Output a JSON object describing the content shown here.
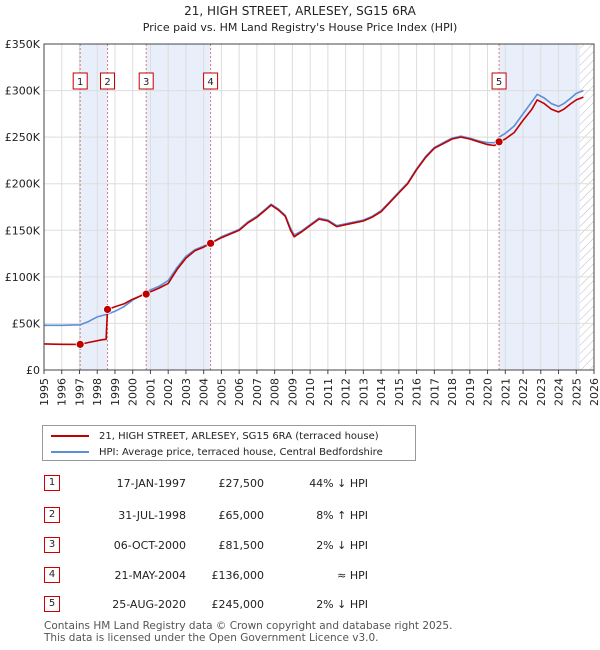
{
  "chart_data": {
    "type": "line",
    "title": "21, HIGH STREET, ARLESEY, SG15 6RA",
    "subtitle": "Price paid vs. HM Land Registry's House Price Index (HPI)",
    "xlim": [
      1995,
      2026
    ],
    "ylim": [
      0,
      350000
    ],
    "ytick_values": [
      0,
      50000,
      100000,
      150000,
      200000,
      250000,
      300000,
      350000
    ],
    "ytick_labels": [
      "£0",
      "£50K",
      "£100K",
      "£150K",
      "£200K",
      "£250K",
      "£300K",
      "£350K"
    ],
    "xtick_labels": [
      "1995",
      "1996",
      "1997",
      "1998",
      "1999",
      "2000",
      "2001",
      "2002",
      "2003",
      "2004",
      "2005",
      "2006",
      "2007",
      "2008",
      "2009",
      "2010",
      "2011",
      "2012",
      "2013",
      "2014",
      "2015",
      "2016",
      "2017",
      "2018",
      "2019",
      "2020",
      "2021",
      "2022",
      "2023",
      "2024",
      "2025",
      "2026"
    ],
    "shaded_periods": [
      [
        1997.04,
        1998.58
      ],
      [
        2000.76,
        2004.39
      ],
      [
        2020.65,
        2025.2
      ]
    ],
    "future_hatch_from": 2025.2,
    "series": [
      {
        "name": "21, HIGH STREET, ARLESEY, SG15 6RA (terraced house)",
        "color": "#c00000",
        "points": [
          [
            1995.0,
            28000
          ],
          [
            1996.0,
            27600
          ],
          [
            1997.04,
            27500
          ],
          [
            1997.5,
            29500
          ],
          [
            1998.3,
            32500
          ],
          [
            1998.5,
            33000
          ],
          [
            1998.58,
            65000
          ],
          [
            1999.0,
            68000
          ],
          [
            1999.5,
            71000
          ],
          [
            2000.0,
            76000
          ],
          [
            2000.5,
            80000
          ],
          [
            2000.76,
            81500
          ],
          [
            2001.0,
            84000
          ],
          [
            2001.5,
            88000
          ],
          [
            2002.0,
            93000
          ],
          [
            2002.5,
            108000
          ],
          [
            2003.0,
            120000
          ],
          [
            2003.5,
            128000
          ],
          [
            2004.0,
            132000
          ],
          [
            2004.39,
            136000
          ],
          [
            2005.0,
            142000
          ],
          [
            2005.5,
            146000
          ],
          [
            2006.0,
            150000
          ],
          [
            2006.5,
            158000
          ],
          [
            2007.0,
            164000
          ],
          [
            2007.5,
            172000
          ],
          [
            2007.8,
            177000
          ],
          [
            2008.2,
            172000
          ],
          [
            2008.6,
            165000
          ],
          [
            2008.9,
            150000
          ],
          [
            2009.1,
            143000
          ],
          [
            2009.5,
            148000
          ],
          [
            2010.0,
            155000
          ],
          [
            2010.5,
            162000
          ],
          [
            2011.0,
            160000
          ],
          [
            2011.5,
            154000
          ],
          [
            2012.0,
            156000
          ],
          [
            2012.5,
            158000
          ],
          [
            2013.0,
            160000
          ],
          [
            2013.5,
            164000
          ],
          [
            2014.0,
            170000
          ],
          [
            2014.5,
            180000
          ],
          [
            2015.0,
            190000
          ],
          [
            2015.5,
            200000
          ],
          [
            2016.0,
            215000
          ],
          [
            2016.5,
            228000
          ],
          [
            2017.0,
            238000
          ],
          [
            2017.5,
            243000
          ],
          [
            2018.0,
            248000
          ],
          [
            2018.5,
            250000
          ],
          [
            2019.0,
            248000
          ],
          [
            2019.5,
            245000
          ],
          [
            2020.0,
            242000
          ],
          [
            2020.4,
            241000
          ],
          [
            2020.65,
            245000
          ],
          [
            2021.0,
            248000
          ],
          [
            2021.5,
            255000
          ],
          [
            2022.0,
            268000
          ],
          [
            2022.5,
            280000
          ],
          [
            2022.8,
            290000
          ],
          [
            2023.2,
            286000
          ],
          [
            2023.6,
            280000
          ],
          [
            2024.0,
            277000
          ],
          [
            2024.3,
            280000
          ],
          [
            2024.7,
            286000
          ],
          [
            2025.0,
            290000
          ],
          [
            2025.4,
            293000
          ]
        ]
      },
      {
        "name": "HPI: Average price, terraced house, Central Bedfordshire",
        "color": "#5b8fd6",
        "points": [
          [
            1995.0,
            48000
          ],
          [
            1996.0,
            48000
          ],
          [
            1997.04,
            48500
          ],
          [
            1997.5,
            52000
          ],
          [
            1998.0,
            57000
          ],
          [
            1998.58,
            60000
          ],
          [
            1999.0,
            63000
          ],
          [
            1999.5,
            68000
          ],
          [
            2000.0,
            75000
          ],
          [
            2000.76,
            83000
          ],
          [
            2001.0,
            86000
          ],
          [
            2001.5,
            90000
          ],
          [
            2002.0,
            96000
          ],
          [
            2002.5,
            110000
          ],
          [
            2003.0,
            122000
          ],
          [
            2003.5,
            129000
          ],
          [
            2004.0,
            133000
          ],
          [
            2004.39,
            136000
          ],
          [
            2005.0,
            143000
          ],
          [
            2005.5,
            147000
          ],
          [
            2006.0,
            151000
          ],
          [
            2006.5,
            159000
          ],
          [
            2007.0,
            165000
          ],
          [
            2007.5,
            173000
          ],
          [
            2007.8,
            178000
          ],
          [
            2008.2,
            173000
          ],
          [
            2008.6,
            166000
          ],
          [
            2008.9,
            152000
          ],
          [
            2009.1,
            145000
          ],
          [
            2009.5,
            149000
          ],
          [
            2010.0,
            156000
          ],
          [
            2010.5,
            163000
          ],
          [
            2011.0,
            161000
          ],
          [
            2011.5,
            155000
          ],
          [
            2012.0,
            157000
          ],
          [
            2012.5,
            159000
          ],
          [
            2013.0,
            161000
          ],
          [
            2013.5,
            165000
          ],
          [
            2014.0,
            171000
          ],
          [
            2014.5,
            181000
          ],
          [
            2015.0,
            191000
          ],
          [
            2015.5,
            201000
          ],
          [
            2016.0,
            216000
          ],
          [
            2016.5,
            229000
          ],
          [
            2017.0,
            239000
          ],
          [
            2017.5,
            244000
          ],
          [
            2018.0,
            249000
          ],
          [
            2018.5,
            251000
          ],
          [
            2019.0,
            249000
          ],
          [
            2019.5,
            246000
          ],
          [
            2020.0,
            244000
          ],
          [
            2020.4,
            244000
          ],
          [
            2020.65,
            250000
          ],
          [
            2021.0,
            254000
          ],
          [
            2021.5,
            262000
          ],
          [
            2022.0,
            275000
          ],
          [
            2022.5,
            288000
          ],
          [
            2022.8,
            296000
          ],
          [
            2023.2,
            292000
          ],
          [
            2023.6,
            286000
          ],
          [
            2024.0,
            283000
          ],
          [
            2024.3,
            286000
          ],
          [
            2024.7,
            292000
          ],
          [
            2025.0,
            297000
          ],
          [
            2025.4,
            300000
          ]
        ]
      }
    ],
    "sales": [
      {
        "num": "1",
        "x": 1997.04,
        "y": 27500,
        "date": "17-JAN-1997",
        "price": "£27,500",
        "hpi": "44% ↓ HPI"
      },
      {
        "num": "2",
        "x": 1998.58,
        "y": 65000,
        "date": "31-JUL-1998",
        "price": "£65,000",
        "hpi": "8% ↑ HPI"
      },
      {
        "num": "3",
        "x": 2000.76,
        "y": 81500,
        "date": "06-OCT-2000",
        "price": "£81,500",
        "hpi": "2% ↓ HPI"
      },
      {
        "num": "4",
        "x": 2004.39,
        "y": 136000,
        "date": "21-MAY-2004",
        "price": "£136,000",
        "hpi": "≈ HPI"
      },
      {
        "num": "5",
        "x": 2020.65,
        "y": 245000,
        "date": "25-AUG-2020",
        "price": "£245,000",
        "hpi": "2% ↓ HPI"
      }
    ]
  },
  "legend": {
    "property": "21, HIGH STREET, ARLESEY, SG15 6RA (terraced house)",
    "hpi": "HPI: Average price, terraced house, Central Bedfordshire"
  },
  "colors": {
    "property": "#c00000",
    "hpi": "#5b8fd6",
    "shade": "#e8eefa"
  },
  "footer": {
    "line1": "Contains HM Land Registry data © Crown copyright and database right 2025.",
    "line2": "This data is licensed under the Open Government Licence v3.0."
  }
}
